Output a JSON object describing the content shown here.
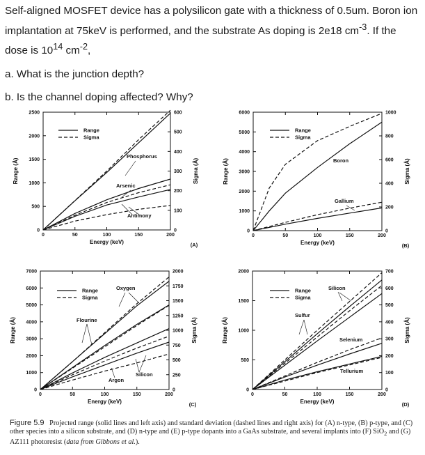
{
  "question": {
    "intro_a": "Self-aligned MOSFET device has a polysilicon gate with a thickness of 0.5um. Boron ion implantation at 75keV is performed, and the substrate As doping is 2e18 cm",
    "intro_sup1": "-3",
    "intro_b": ". If the dose is 10",
    "intro_sup2": "14",
    "intro_c": " cm",
    "intro_sup3": "-2",
    "intro_d": ",",
    "part_a": "a. What is the junction depth?",
    "part_b": "b. Is the channel doping affected? Why?"
  },
  "caption": {
    "label": "Figure 5.9",
    "text": "Projected range (solid lines and left axis) and standard deviation (dashed lines and right axis) for (A) n-type, (B) p-type, and (C) other species into a silicon substrate, and (D) n-type and (E) p-type dopants into a GaAs substrate, and several implants into (F) SiO",
    "sub": "2",
    "text2": " and (G) AZ111 photoresist (",
    "source": "data from Gibbons et al.",
    "text3": ")."
  },
  "legend": {
    "range": "Range",
    "sigma": "Sigma"
  },
  "chart_data": [
    {
      "type": "line",
      "panel": "(A)",
      "xlabel": "Energy (keV)",
      "ylabel": "Range (Å)",
      "y2label": "Sigma (Å)",
      "xlim": [
        0,
        200
      ],
      "ylim": [
        0,
        2500
      ],
      "y2lim": [
        0,
        600
      ],
      "xticks": [
        0,
        50,
        100,
        150,
        200
      ],
      "yticks": [
        0,
        500,
        1000,
        1500,
        2000,
        2500
      ],
      "y2ticks": [
        0,
        100,
        200,
        300,
        400,
        500,
        600
      ],
      "series": [
        {
          "name": "Phosphorus",
          "style": "solid",
          "axis": "left",
          "x": [
            0,
            50,
            100,
            150,
            200
          ],
          "y": [
            0,
            620,
            1220,
            1850,
            2480
          ]
        },
        {
          "name": "Phosphorus",
          "style": "dashed",
          "axis": "right",
          "x": [
            0,
            50,
            100,
            150,
            200
          ],
          "y": [
            0,
            150,
            300,
            460,
            610
          ]
        },
        {
          "name": "Arsenic",
          "style": "solid",
          "axis": "left",
          "x": [
            0,
            50,
            100,
            150,
            200
          ],
          "y": [
            0,
            350,
            640,
            880,
            1080
          ]
        },
        {
          "name": "Arsenic",
          "style": "dashed",
          "axis": "right",
          "x": [
            0,
            50,
            100,
            150,
            200
          ],
          "y": [
            0,
            75,
            140,
            190,
            230
          ]
        },
        {
          "name": "Antimony",
          "style": "solid",
          "axis": "left",
          "x": [
            0,
            50,
            100,
            150,
            200
          ],
          "y": [
            0,
            290,
            530,
            700,
            860
          ]
        },
        {
          "name": "Antimony",
          "style": "dashed",
          "axis": "right",
          "x": [
            0,
            50,
            100,
            150,
            200
          ],
          "y": [
            0,
            45,
            78,
            105,
            125
          ]
        }
      ],
      "labels": [
        "Phosphorus",
        "Arsenic",
        "Antimony"
      ]
    },
    {
      "type": "line",
      "panel": "(B)",
      "xlabel": "Energy (keV)",
      "ylabel": "Range (Å)",
      "y2label": "Sigma (Å)",
      "xlim": [
        0,
        200
      ],
      "ylim": [
        0,
        6000
      ],
      "y2lim": [
        0,
        1000
      ],
      "xticks": [
        0,
        50,
        100,
        150,
        200
      ],
      "yticks": [
        0,
        1000,
        2000,
        3000,
        4000,
        5000,
        6000
      ],
      "y2ticks": [
        0,
        200,
        400,
        600,
        800,
        1000
      ],
      "series": [
        {
          "name": "Boron",
          "style": "solid",
          "axis": "left",
          "x": [
            0,
            25,
            50,
            100,
            150,
            200
          ],
          "y": [
            0,
            1000,
            1900,
            3200,
            4400,
            5500
          ]
        },
        {
          "name": "Boron",
          "style": "dashed",
          "axis": "right",
          "x": [
            0,
            25,
            50,
            100,
            150,
            200
          ],
          "y": [
            0,
            360,
            560,
            760,
            880,
            990
          ]
        },
        {
          "name": "Gallium",
          "style": "solid",
          "axis": "left",
          "x": [
            0,
            50,
            100,
            150,
            200
          ],
          "y": [
            0,
            330,
            620,
            890,
            1150
          ]
        },
        {
          "name": "Gallium",
          "style": "dashed",
          "axis": "right",
          "x": [
            0,
            50,
            100,
            150,
            200
          ],
          "y": [
            0,
            70,
            135,
            190,
            240
          ]
        }
      ],
      "labels": [
        "Boron",
        "Gallium"
      ]
    },
    {
      "type": "line",
      "panel": "(C)",
      "xlabel": "Energy (keV)",
      "ylabel": "Range (Å)",
      "y2label": "Sigma (Å)",
      "xlim": [
        0,
        200
      ],
      "ylim": [
        0,
        7000
      ],
      "y2lim": [
        0,
        2000
      ],
      "xticks": [
        0,
        50,
        100,
        150,
        200
      ],
      "yticks": [
        0,
        1000,
        2000,
        3000,
        4000,
        5000,
        6000,
        7000
      ],
      "y2ticks": [
        0,
        250,
        500,
        750,
        1000,
        1250,
        1500,
        1750,
        2000
      ],
      "series": [
        {
          "name": "Oxygen",
          "style": "solid",
          "axis": "left",
          "x": [
            0,
            50,
            100,
            150,
            200
          ],
          "y": [
            0,
            1650,
            3300,
            4950,
            6400
          ]
        },
        {
          "name": "Oxygen",
          "style": "dashed",
          "axis": "right",
          "x": [
            0,
            50,
            100,
            150,
            200
          ],
          "y": [
            0,
            470,
            960,
            1450,
            1900
          ]
        },
        {
          "name": "Flourine",
          "style": "solid",
          "axis": "left",
          "x": [
            0,
            50,
            100,
            150,
            200
          ],
          "y": [
            0,
            1300,
            2600,
            3850,
            5000
          ]
        },
        {
          "name": "Flourine",
          "style": "dashed",
          "axis": "right",
          "x": [
            0,
            50,
            100,
            150,
            200
          ],
          "y": [
            0,
            360,
            720,
            1080,
            1420
          ]
        },
        {
          "name": "Silicon",
          "style": "solid",
          "axis": "left",
          "x": [
            0,
            50,
            100,
            150,
            200
          ],
          "y": [
            0,
            980,
            1900,
            2750,
            3600
          ]
        },
        {
          "name": "Silicon",
          "style": "dashed",
          "axis": "right",
          "x": [
            0,
            50,
            100,
            150,
            200
          ],
          "y": [
            0,
            250,
            480,
            700,
            900
          ]
        },
        {
          "name": "Argon",
          "style": "solid",
          "axis": "left",
          "x": [
            0,
            50,
            100,
            150,
            200
          ],
          "y": [
            0,
            750,
            1450,
            2150,
            2800
          ]
        },
        {
          "name": "Argon",
          "style": "dashed",
          "axis": "right",
          "x": [
            0,
            50,
            100,
            150,
            200
          ],
          "y": [
            0,
            160,
            310,
            450,
            600
          ]
        }
      ],
      "labels": [
        "Oxygen",
        "Flourine",
        "Silicon",
        "Argon"
      ]
    },
    {
      "type": "line",
      "panel": "(D)",
      "xlabel": "Energy (keV)",
      "ylabel": "Range (Å)",
      "y2label": "Sigma (Å)",
      "xlim": [
        0,
        200
      ],
      "ylim": [
        0,
        2000
      ],
      "y2lim": [
        0,
        700
      ],
      "xticks": [
        0,
        50,
        100,
        150,
        200
      ],
      "yticks": [
        0,
        500,
        1000,
        1500,
        2000
      ],
      "y2ticks": [
        0,
        100,
        200,
        300,
        400,
        500,
        600,
        700
      ],
      "series": [
        {
          "name": "Silicon",
          "style": "solid",
          "axis": "left",
          "x": [
            0,
            50,
            100,
            150,
            200
          ],
          "y": [
            0,
            470,
            940,
            1400,
            1850
          ]
        },
        {
          "name": "Silicon",
          "style": "dashed",
          "axis": "right",
          "x": [
            0,
            50,
            100,
            150,
            200
          ],
          "y": [
            0,
            175,
            350,
            520,
            690
          ]
        },
        {
          "name": "Sulfur",
          "style": "solid",
          "axis": "left",
          "x": [
            0,
            50,
            100,
            150,
            200
          ],
          "y": [
            0,
            410,
            820,
            1220,
            1620
          ]
        },
        {
          "name": "Sulfur",
          "style": "dashed",
          "axis": "right",
          "x": [
            0,
            50,
            100,
            150,
            200
          ],
          "y": [
            0,
            155,
            310,
            465,
            615
          ]
        },
        {
          "name": "Selenium",
          "style": "solid",
          "axis": "left",
          "x": [
            0,
            50,
            100,
            150,
            200
          ],
          "y": [
            0,
            210,
            410,
            600,
            780
          ]
        },
        {
          "name": "Selenium",
          "style": "dashed",
          "axis": "right",
          "x": [
            0,
            50,
            100,
            150,
            200
          ],
          "y": [
            0,
            80,
            160,
            235,
            305
          ]
        },
        {
          "name": "Tellurium",
          "style": "solid",
          "axis": "left",
          "x": [
            0,
            50,
            100,
            150,
            200
          ],
          "y": [
            0,
            160,
            300,
            430,
            560
          ]
        },
        {
          "name": "Tellurium",
          "style": "dashed",
          "axis": "right",
          "x": [
            0,
            50,
            100,
            150,
            200
          ],
          "y": [
            0,
            50,
            100,
            145,
            190
          ]
        }
      ],
      "labels": [
        "Silicon",
        "Sulfur",
        "Selenium",
        "Tellurium"
      ]
    }
  ]
}
